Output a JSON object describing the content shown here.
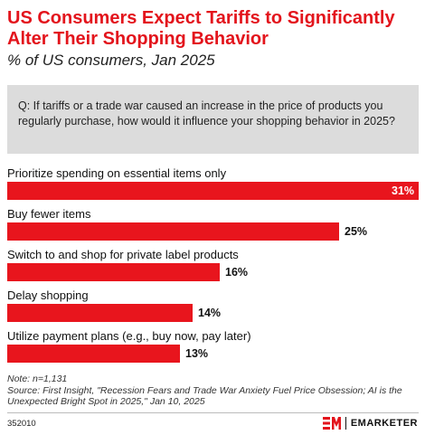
{
  "header": {
    "title": "US Consumers Expect Tariffs to Significantly Alter Their Shopping Behavior",
    "subtitle": "% of US consumers, Jan 2025"
  },
  "question": "Q: If tariffs or a trade war caused an increase in the price of products you regularly purchase, how would it influence your shopping behavior in 2025?",
  "chart_data": {
    "type": "bar",
    "orientation": "horizontal",
    "categories": [
      "Prioritize spending on essential items only",
      "Buy fewer items",
      "Switch to and shop for private label products",
      "Delay shopping",
      "Utilize payment plans (e.g., buy now, pay later)"
    ],
    "values": [
      31,
      25,
      16,
      14,
      13
    ],
    "value_labels": [
      "31%",
      "25%",
      "16%",
      "14%",
      "13%"
    ],
    "xlim": [
      0,
      31
    ],
    "grid": false,
    "legend": "none",
    "colors": {
      "bar": "#e8151d",
      "title": "#e3141c"
    }
  },
  "footer": {
    "note": "Note: n=1,131",
    "source": "Source: First Insight, \"Recession Fears and Trade War Anxiety Fuel Price Obsession; AI is the Unexpected Bright Spot in 2025,\" Jan 10, 2025",
    "chart_id": "352010",
    "brand": "EMARKETER",
    "brand_icon": "em-logo-icon"
  }
}
